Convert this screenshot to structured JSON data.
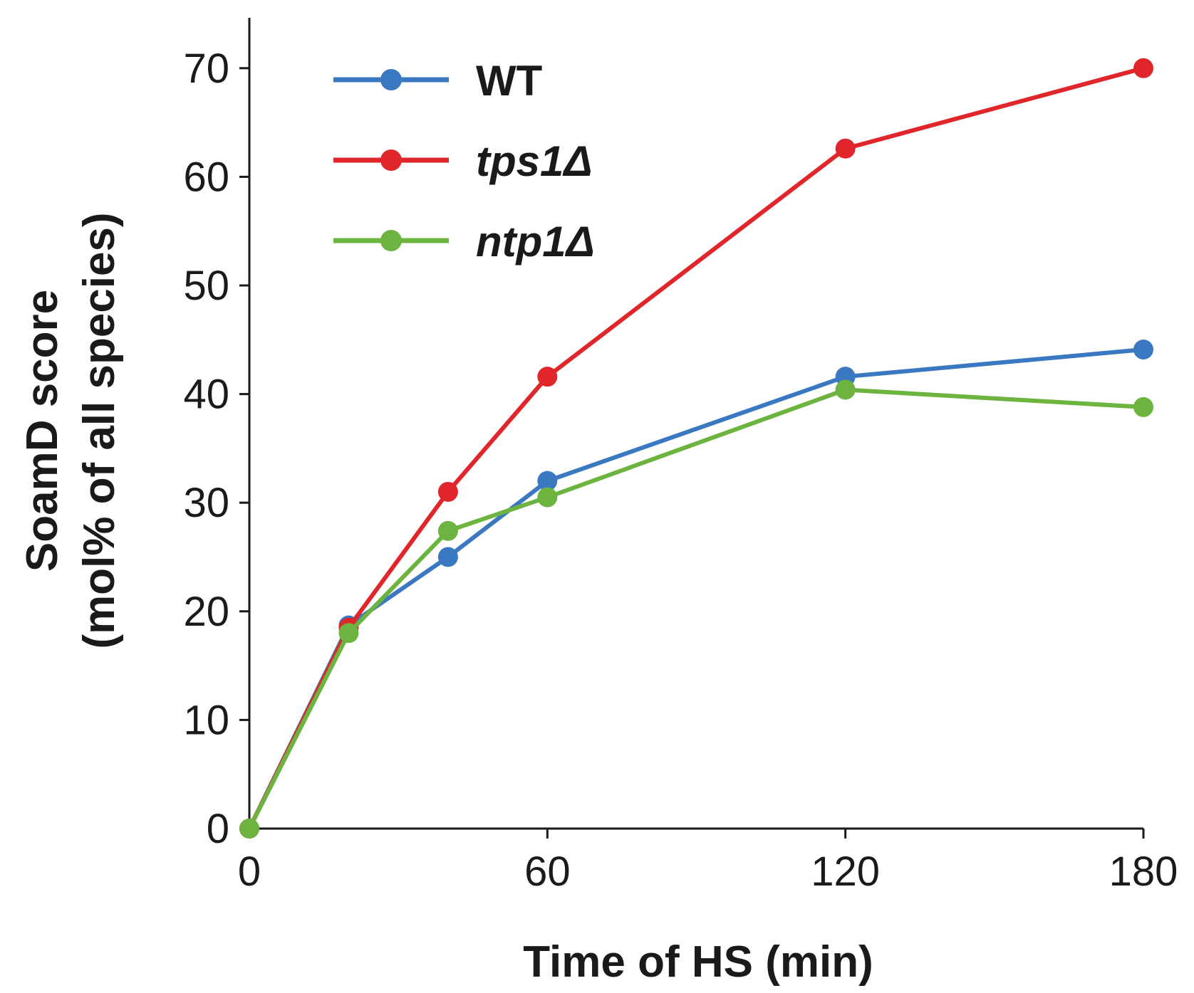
{
  "chart_data": {
    "type": "line",
    "title": "",
    "xlabel": "Time of HS (min)",
    "ylabel_line1": "SoamD score",
    "ylabel_line2": "(mol% of all species)",
    "xlim": [
      0,
      180
    ],
    "ylim": [
      0,
      75
    ],
    "xticks": [
      0,
      60,
      120,
      180
    ],
    "xtick_labels": [
      "0",
      "60",
      "120",
      "180"
    ],
    "yticks": [
      0,
      10,
      20,
      30,
      40,
      50,
      60,
      70
    ],
    "ytick_labels": [
      "0",
      "10",
      "20",
      "30",
      "40",
      "50",
      "60",
      "70"
    ],
    "grid": false,
    "legend_position": "top-left",
    "x": [
      0,
      20,
      40,
      60,
      120,
      180
    ],
    "series": [
      {
        "name": "WT",
        "italic": false,
        "color": "#3a78c2",
        "values": [
          0,
          18.7,
          25.0,
          32.0,
          41.6,
          44.1
        ]
      },
      {
        "name": "tps1Δ",
        "italic": true,
        "color": "#e0262b",
        "values": [
          0,
          18.5,
          31.0,
          41.6,
          62.6,
          70.0
        ]
      },
      {
        "name": "ntp1Δ",
        "italic": true,
        "color": "#6cb33f",
        "values": [
          0,
          18.0,
          27.4,
          30.5,
          40.4,
          38.8
        ]
      }
    ]
  }
}
